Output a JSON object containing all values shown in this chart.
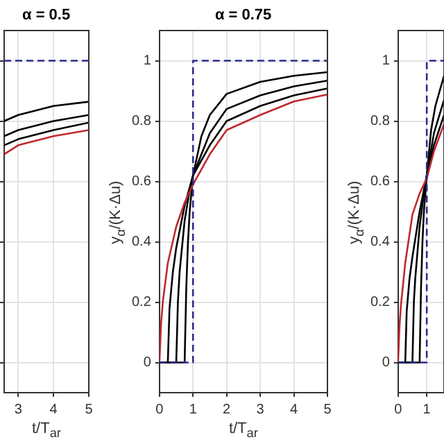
{
  "chart_data": [
    {
      "type": "line",
      "title": "α = 0.5",
      "xlabel": "t/T$_{ar}$",
      "xlim": [
        2.6,
        5
      ],
      "xticks": [
        3,
        4,
        5
      ],
      "ylim": [
        -0.1,
        1.1
      ],
      "yticks": [
        0,
        0.2,
        0.4,
        0.6,
        0.8,
        1
      ],
      "grid": true,
      "tick_labels": "x",
      "series": [
        {
          "color": "#2b2b8f",
          "line_style": "dashed",
          "x": [
            2.6,
            5
          ],
          "values": [
            1,
            1
          ]
        },
        {
          "color": "#c0282d",
          "x": [
            2.6,
            3,
            4,
            5
          ],
          "values": [
            0.69,
            0.72,
            0.75,
            0.77
          ]
        },
        {
          "color": "#000000",
          "x": [
            2.6,
            3,
            4,
            5
          ],
          "values": [
            0.72,
            0.74,
            0.77,
            0.795
          ]
        },
        {
          "color": "#000000",
          "x": [
            2.6,
            3,
            4,
            5
          ],
          "values": [
            0.75,
            0.77,
            0.8,
            0.82
          ]
        },
        {
          "color": "#000000",
          "x": [
            2.6,
            3,
            4,
            5
          ],
          "values": [
            0.8,
            0.82,
            0.85,
            0.864
          ]
        }
      ]
    },
    {
      "type": "line",
      "title": "α = 0.75",
      "xlabel": "t/T$_{ar}$",
      "ylabel": "y$_{α}$/(K·Δu)",
      "xlim": [
        0,
        5
      ],
      "xticks": [
        0,
        1,
        2,
        3,
        4,
        5
      ],
      "ylim": [
        -0.1,
        1.1
      ],
      "yticks": [
        0,
        0.2,
        0.4,
        0.6,
        0.8,
        1
      ],
      "grid": true,
      "series": [
        {
          "color": "#2b2b8f",
          "line_style": "dashed",
          "x": [
            0,
            1,
            1,
            5
          ],
          "values": [
            0,
            0,
            1,
            1
          ]
        },
        {
          "color": "#c0282d",
          "x": [
            0,
            0.05,
            0.1,
            0.25,
            0.5,
            0.75,
            1,
            1.5,
            2,
            3,
            4,
            5
          ],
          "values": [
            0,
            0.13,
            0.2,
            0.33,
            0.45,
            0.53,
            0.59,
            0.69,
            0.77,
            0.82,
            0.865,
            0.888
          ]
        },
        {
          "color": "#000000",
          "x": [
            0,
            0.25,
            0.3,
            0.4,
            0.5,
            0.75,
            1,
            1.5,
            2,
            3,
            4,
            5
          ],
          "values": [
            0,
            0,
            0.18,
            0.3,
            0.38,
            0.52,
            0.62,
            0.72,
            0.8,
            0.85,
            0.885,
            0.908
          ]
        },
        {
          "color": "#000000",
          "x": [
            0,
            0.5,
            0.55,
            0.6,
            0.75,
            0.9,
            1,
            1.5,
            2,
            3,
            4,
            5
          ],
          "values": [
            0,
            0,
            0.2,
            0.3,
            0.47,
            0.57,
            0.62,
            0.76,
            0.84,
            0.885,
            0.915,
            0.934
          ]
        },
        {
          "color": "#000000",
          "x": [
            0,
            0.75,
            0.8,
            0.85,
            0.9,
            1,
            1.25,
            1.5,
            2,
            3,
            4,
            5
          ],
          "values": [
            0,
            0,
            0.25,
            0.4,
            0.5,
            0.62,
            0.75,
            0.82,
            0.89,
            0.93,
            0.95,
            0.962
          ]
        }
      ]
    },
    {
      "type": "line",
      "ylabel": "y$_{α}$/(K·Δu)",
      "xlim": [
        0,
        1.6
      ],
      "xticks": [
        0,
        1
      ],
      "ylim": [
        -0.1,
        1.1
      ],
      "yticks": [
        0,
        0.2,
        0.4,
        0.6,
        0.8,
        1
      ],
      "grid": true,
      "series": [
        {
          "color": "#2b2b8f",
          "line_style": "dashed",
          "x": [
            0,
            1,
            1,
            1.6
          ],
          "values": [
            0,
            0,
            1,
            1
          ]
        },
        {
          "color": "#c0282d",
          "x": [
            0,
            0.05,
            0.1,
            0.25,
            0.5,
            0.75,
            1,
            1.25,
            1.6
          ],
          "values": [
            0,
            0.12,
            0.19,
            0.33,
            0.49,
            0.56,
            0.61,
            0.7,
            0.79
          ]
        },
        {
          "color": "#000000",
          "x": [
            0,
            0.25,
            0.3,
            0.4,
            0.5,
            0.75,
            1,
            1.25,
            1.6
          ],
          "values": [
            0,
            0,
            0.17,
            0.28,
            0.35,
            0.5,
            0.62,
            0.72,
            0.82
          ]
        },
        {
          "color": "#000000",
          "x": [
            0,
            0.5,
            0.55,
            0.6,
            0.75,
            0.9,
            1,
            1.25,
            1.6
          ],
          "values": [
            0,
            0,
            0.2,
            0.28,
            0.45,
            0.56,
            0.62,
            0.76,
            0.87
          ]
        },
        {
          "color": "#000000",
          "x": [
            0,
            0.75,
            0.8,
            0.85,
            0.9,
            1,
            1.15,
            1.3,
            1.6
          ],
          "values": [
            0,
            0,
            0.25,
            0.4,
            0.5,
            0.62,
            0.77,
            0.85,
            0.95
          ]
        }
      ]
    }
  ]
}
